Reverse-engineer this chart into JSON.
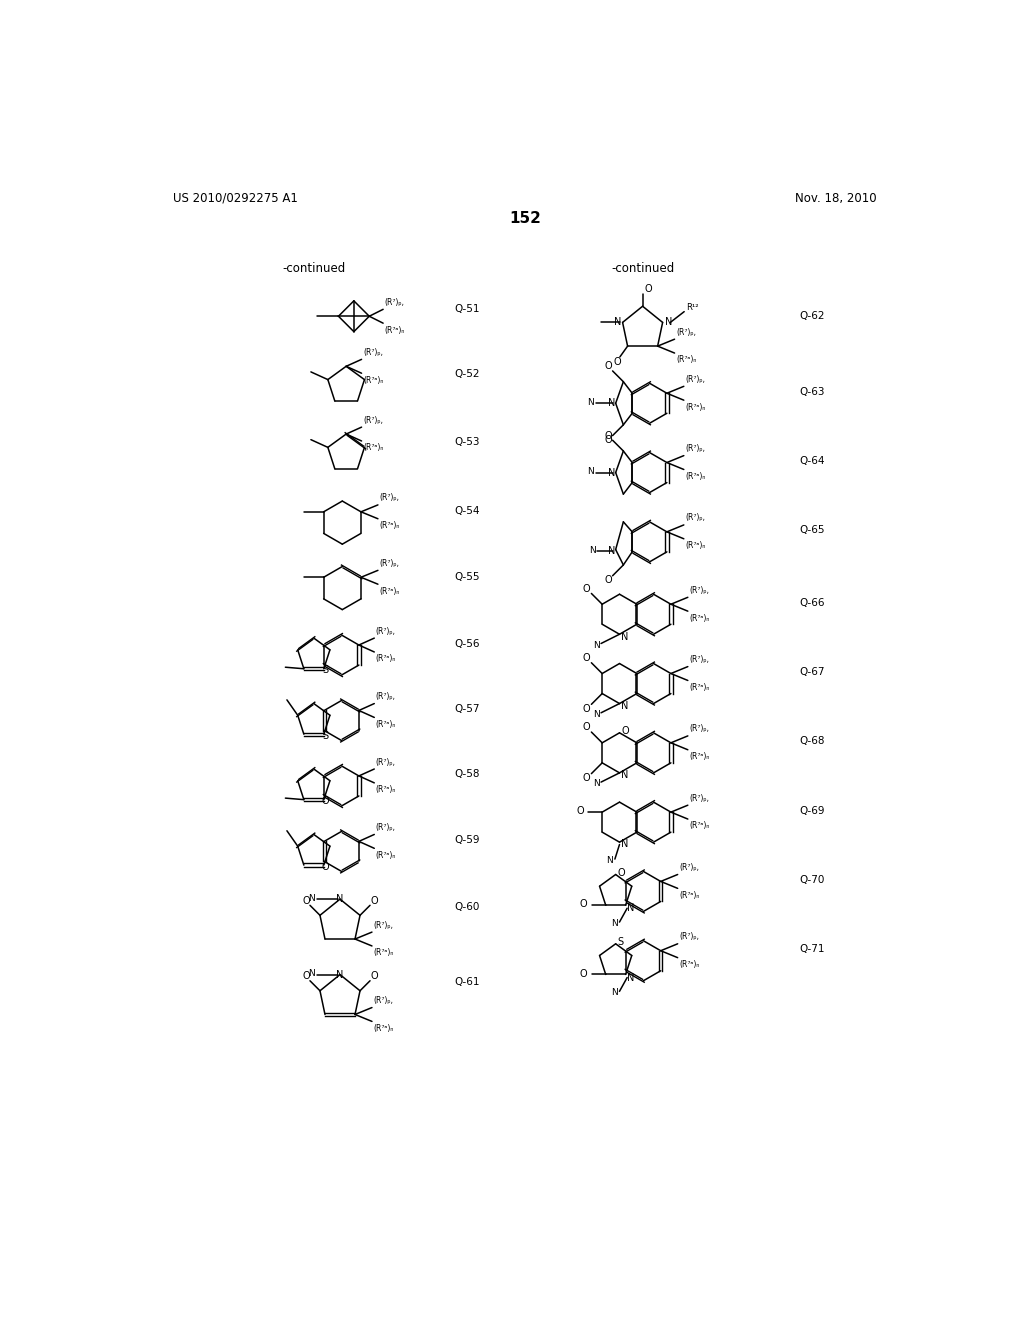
{
  "page_title": "152",
  "header_left": "US 2010/0292275 A1",
  "header_right": "Nov. 18, 2010",
  "bg_color": "#ffffff",
  "left_continued": "-continued",
  "right_continued": "-continued"
}
